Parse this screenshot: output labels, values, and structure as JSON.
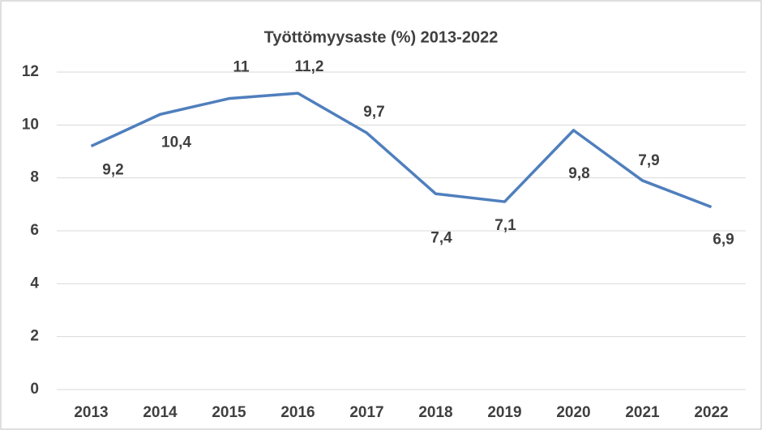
{
  "chart_data": {
    "type": "line",
    "title": "Työttömyysaste (%) 2013-2022",
    "categories": [
      "2013",
      "2014",
      "2015",
      "2016",
      "2017",
      "2018",
      "2019",
      "2020",
      "2021",
      "2022"
    ],
    "series": [
      {
        "name": "Työttömyysaste (%)",
        "color": "#4f7fbd",
        "values": [
          9.2,
          10.4,
          11,
          11.2,
          9.7,
          7.4,
          7.1,
          9.8,
          7.9,
          6.9
        ],
        "value_labels": [
          "9,2",
          "10,4",
          "11",
          "11,2",
          "9,7",
          "7,4",
          "7,1",
          "9,8",
          "7,9",
          "6,9"
        ]
      }
    ],
    "ylim": [
      0,
      12
    ],
    "yticks": [
      0,
      2,
      4,
      6,
      8,
      10,
      12
    ],
    "grid": true
  }
}
